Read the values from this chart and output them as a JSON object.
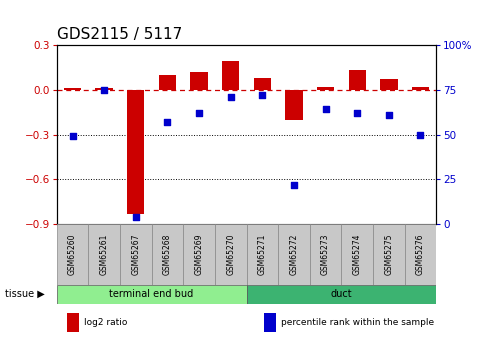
{
  "title": "GDS2115 / 5117",
  "samples": [
    "GSM65260",
    "GSM65261",
    "GSM65267",
    "GSM65268",
    "GSM65269",
    "GSM65270",
    "GSM65271",
    "GSM65272",
    "GSM65273",
    "GSM65274",
    "GSM65275",
    "GSM65276"
  ],
  "log2_ratio": [
    0.01,
    0.01,
    -0.83,
    0.1,
    0.12,
    0.19,
    0.08,
    -0.2,
    0.02,
    0.13,
    0.07,
    0.02
  ],
  "percentile": [
    49,
    75,
    4,
    57,
    62,
    71,
    72,
    22,
    64,
    62,
    61,
    50
  ],
  "tissue_groups": [
    {
      "label": "terminal end bud",
      "start": 0,
      "end": 6,
      "color": "#90EE90"
    },
    {
      "label": "duct",
      "start": 6,
      "end": 12,
      "color": "#3CB371"
    }
  ],
  "ylim_left": [
    -0.9,
    0.3
  ],
  "ylim_right": [
    0,
    100
  ],
  "yticks_left": [
    -0.9,
    -0.6,
    -0.3,
    0.0,
    0.3
  ],
  "yticks_right": [
    0,
    25,
    50,
    75,
    100
  ],
  "bar_color": "#CC0000",
  "scatter_color": "#0000CC",
  "hline_color": "#CC0000",
  "title_fontsize": 11,
  "tick_fontsize": 7.5,
  "sample_fontsize": 5.5,
  "legend_items": [
    {
      "label": "log2 ratio",
      "color": "#CC0000"
    },
    {
      "label": "percentile rank within the sample",
      "color": "#0000CC"
    }
  ],
  "gray_color": "#C8C8C8",
  "light_green": "#90EE90",
  "dark_green": "#3CB371"
}
